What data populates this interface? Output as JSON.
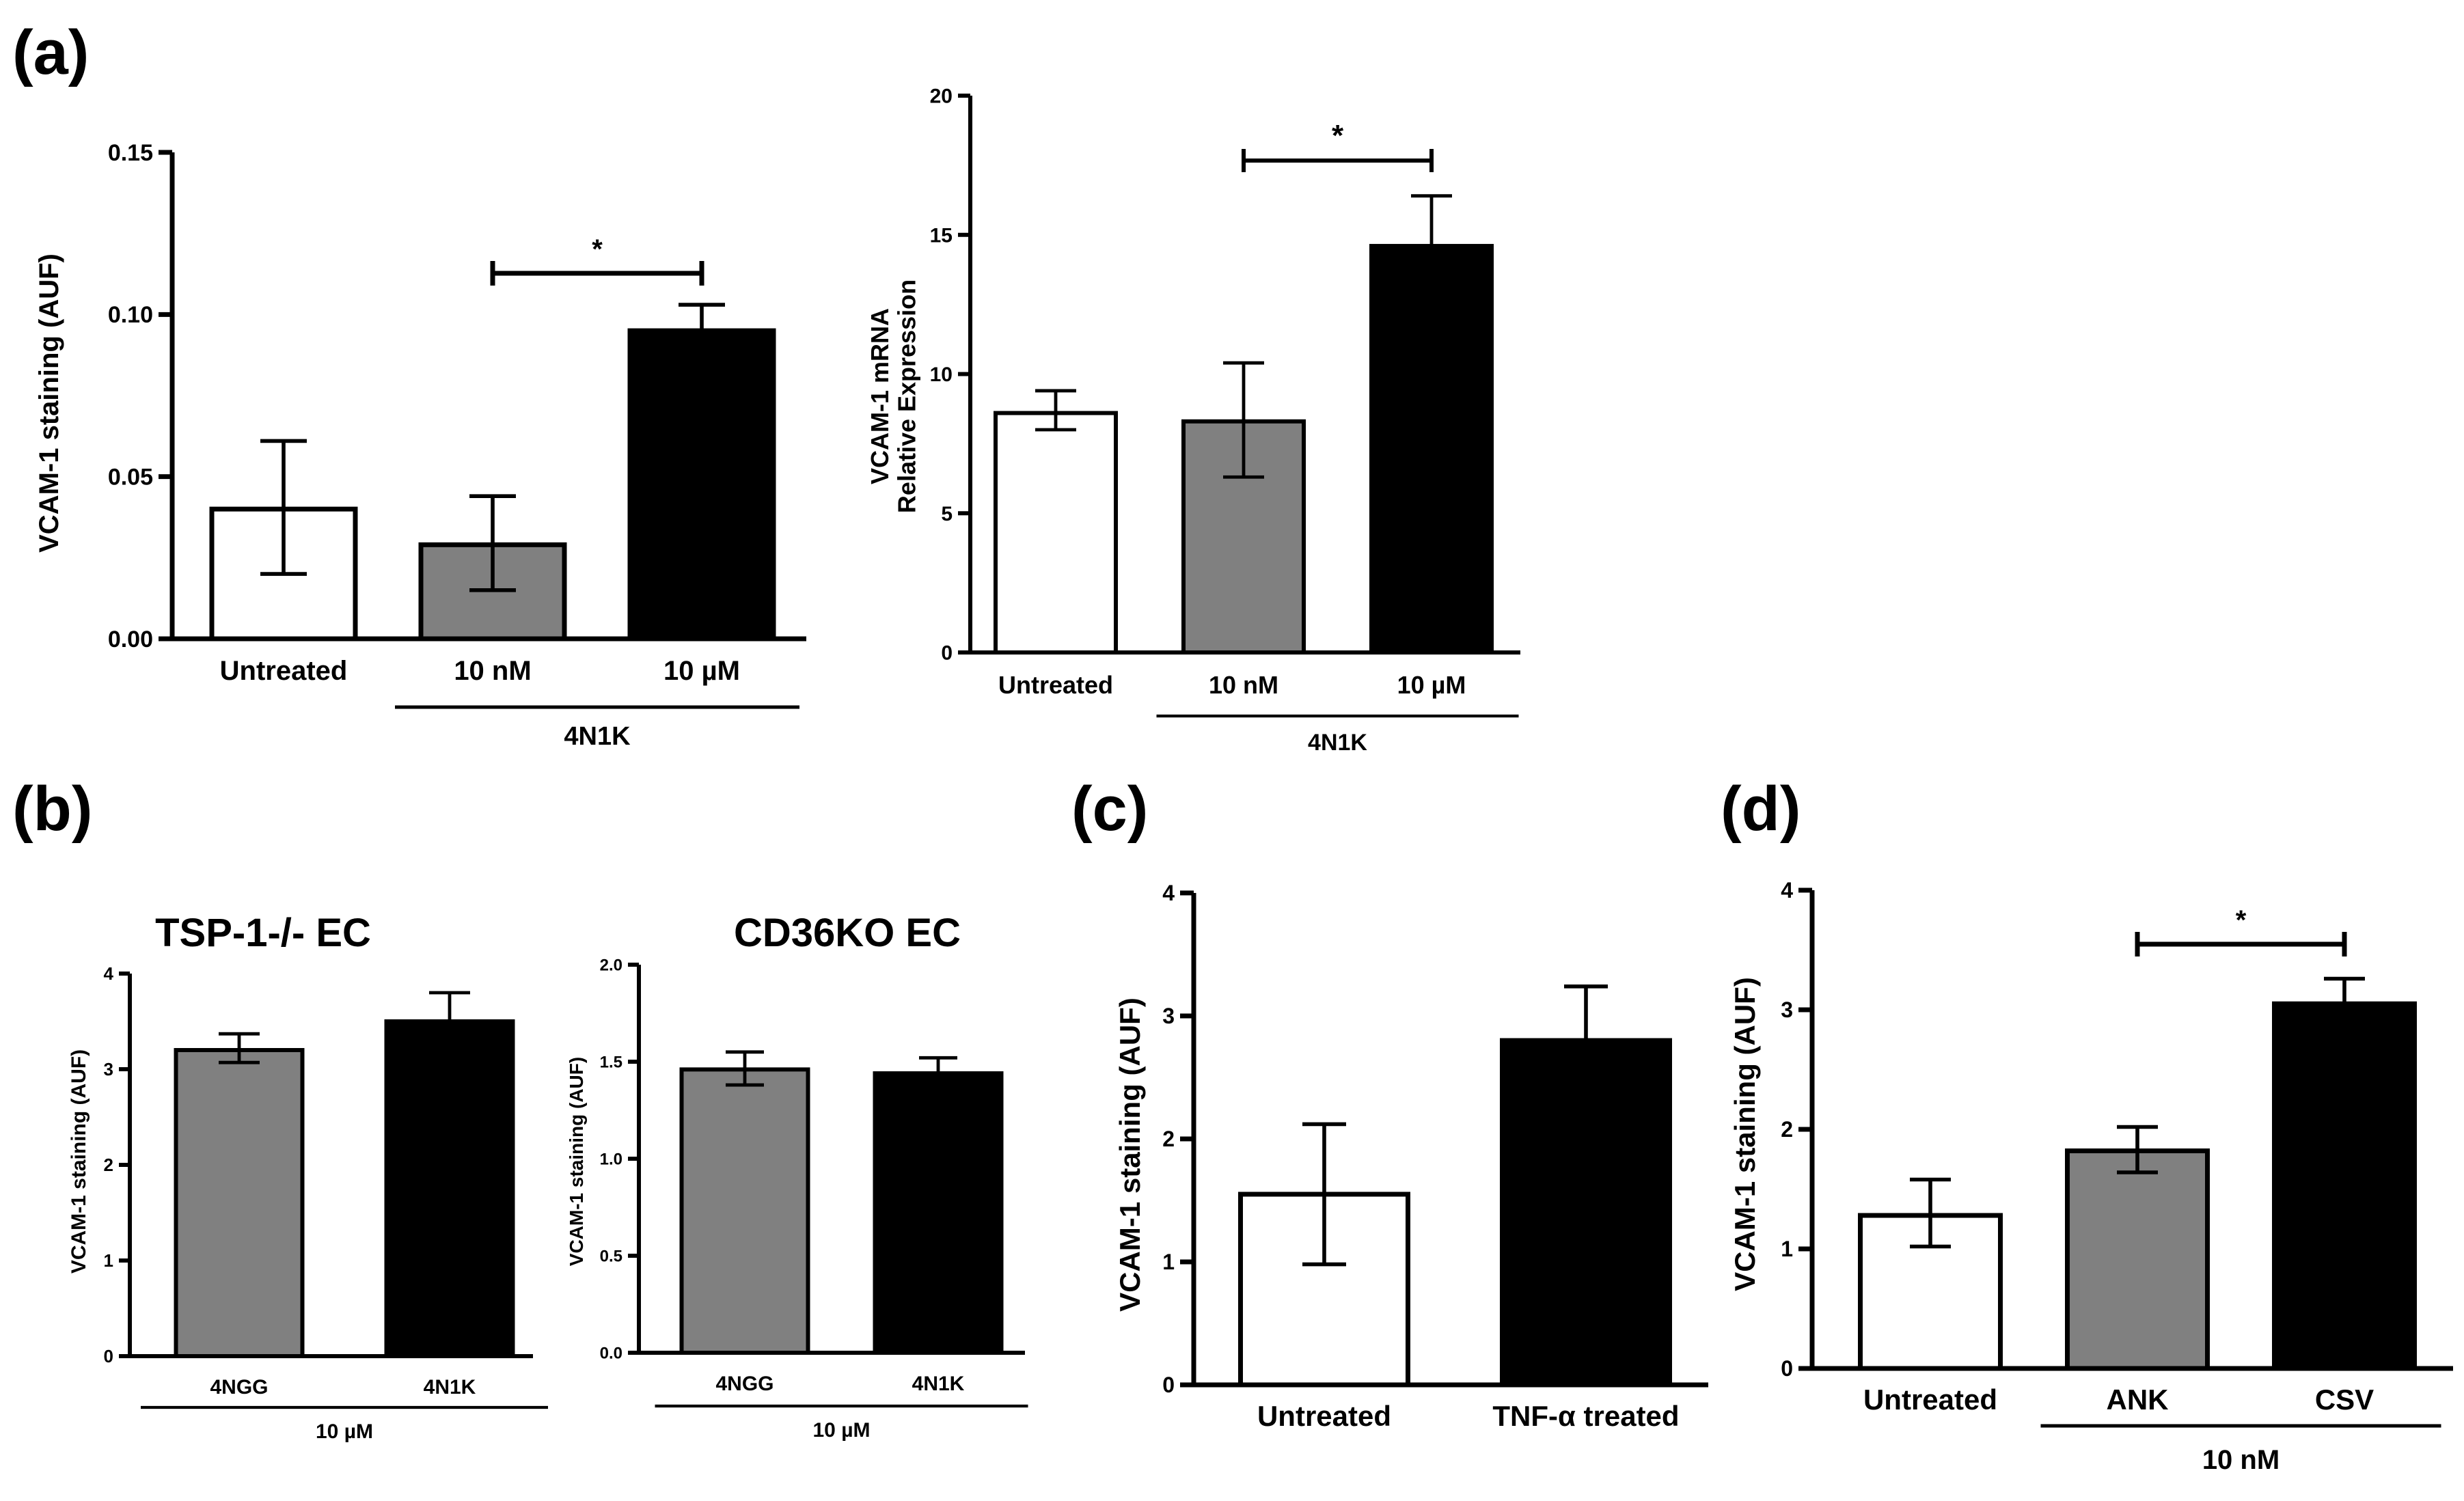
{
  "panels": [
    {
      "label": "(a)"
    },
    {
      "label": "(b)"
    },
    {
      "label": "(c)"
    },
    {
      "label": "(d)"
    }
  ],
  "chart_data": [
    {
      "type": "bar",
      "panel": "(a)",
      "title": "",
      "ylabel": "VCAM-1 staining (AUF)",
      "categories": [
        "Untreated",
        "10 nM",
        "10 µM"
      ],
      "values": [
        0.04,
        0.029,
        0.095
      ],
      "error_low": [
        0.02,
        0.015,
        0.088
      ],
      "error_high": [
        0.061,
        0.044,
        0.103
      ],
      "colors": [
        "#ffffff",
        "#808080",
        "#000000"
      ],
      "ylim": [
        0,
        0.15
      ],
      "yticks": [
        0,
        0.05,
        0.1,
        0.15
      ],
      "ytick_labels": [
        "0.00",
        "0.05",
        "0.10",
        "0.15"
      ],
      "group_label": "4N1K",
      "group_span": [
        1,
        2
      ],
      "significance": [
        {
          "from": 1,
          "to": 2,
          "label": "*"
        }
      ]
    },
    {
      "type": "bar",
      "panel": "(a)",
      "title": "",
      "ylabel": [
        "VCAM-1 mRNA",
        "Relative Expression"
      ],
      "categories": [
        "Untreated",
        "10 nM",
        "10 µM"
      ],
      "values": [
        8.6,
        8.3,
        14.6
      ],
      "error_low": [
        8.0,
        6.3,
        12.8
      ],
      "error_high": [
        9.4,
        10.4,
        16.4
      ],
      "colors": [
        "#ffffff",
        "#808080",
        "#000000"
      ],
      "ylim": [
        0,
        20
      ],
      "yticks": [
        0,
        5,
        10,
        15,
        20
      ],
      "ytick_labels": [
        "0",
        "5",
        "10",
        "15",
        "20"
      ],
      "group_label": "4N1K",
      "group_span": [
        1,
        2
      ],
      "significance": [
        {
          "from": 1,
          "to": 2,
          "label": "*"
        }
      ]
    },
    {
      "type": "bar",
      "panel": "(b)",
      "title": "TSP-1-/- EC",
      "ylabel": "VCAM-1 staining (AUF)",
      "categories": [
        "4NGG",
        "4N1K"
      ],
      "values": [
        3.2,
        3.5
      ],
      "error_low": [
        3.07,
        3.5
      ],
      "error_high": [
        3.37,
        3.8
      ],
      "colors": [
        "#808080",
        "#000000"
      ],
      "ylim": [
        0,
        4
      ],
      "yticks": [
        0,
        1,
        2,
        3,
        4
      ],
      "ytick_labels": [
        "0",
        "1",
        "2",
        "3",
        "4"
      ],
      "group_label": "10 µM",
      "group_span": [
        0,
        1
      ],
      "significance": []
    },
    {
      "type": "bar",
      "panel": "(b)",
      "title": "CD36KO EC",
      "ylabel": "VCAM-1 staining (AUF)",
      "categories": [
        "4NGG",
        "4N1K"
      ],
      "values": [
        1.46,
        1.44
      ],
      "error_low": [
        1.38,
        1.44
      ],
      "error_high": [
        1.55,
        1.52
      ],
      "colors": [
        "#808080",
        "#000000"
      ],
      "ylim": [
        0,
        2
      ],
      "yticks": [
        0,
        0.5,
        1,
        1.5,
        2
      ],
      "ytick_labels": [
        "0.0",
        "0.5",
        "1.0",
        "1.5",
        "2.0"
      ],
      "group_label": "10 µM",
      "group_span": [
        0,
        1
      ],
      "significance": []
    },
    {
      "type": "bar",
      "panel": "(c)",
      "title": "",
      "ylabel": "VCAM-1 staining (AUF)",
      "categories": [
        "Untreated",
        "TNF-α treated"
      ],
      "values": [
        1.55,
        2.8
      ],
      "error_low": [
        0.98,
        2.8
      ],
      "error_high": [
        2.12,
        3.24
      ],
      "colors": [
        "#ffffff",
        "#000000"
      ],
      "ylim": [
        0,
        4
      ],
      "yticks": [
        0,
        1,
        2,
        3,
        4
      ],
      "ytick_labels": [
        "0",
        "1",
        "2",
        "3",
        "4"
      ],
      "group_label": "",
      "significance": []
    },
    {
      "type": "bar",
      "panel": "(d)",
      "title": "",
      "ylabel": "VCAM-1 staining (AUF)",
      "categories": [
        "Untreated",
        "ANK",
        "CSV"
      ],
      "values": [
        1.28,
        1.82,
        3.05
      ],
      "error_low": [
        1.02,
        1.64,
        2.86
      ],
      "error_high": [
        1.58,
        2.02,
        3.26
      ],
      "colors": [
        "#ffffff",
        "#808080",
        "#000000"
      ],
      "ylim": [
        0,
        4
      ],
      "yticks": [
        0,
        1,
        2,
        3,
        4
      ],
      "ytick_labels": [
        "0",
        "1",
        "2",
        "3",
        "4"
      ],
      "group_label": "10 nM",
      "group_span": [
        1,
        2
      ],
      "significance": [
        {
          "from": 1,
          "to": 2,
          "label": "*"
        }
      ]
    }
  ]
}
